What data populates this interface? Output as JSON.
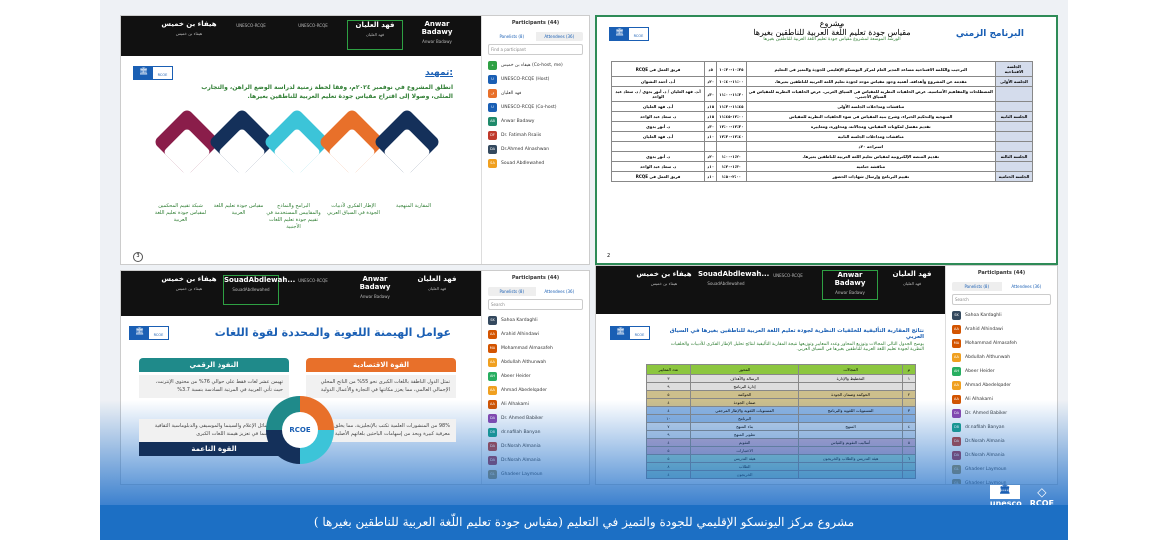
{
  "caption": "مشروع مركز اليونسكو الإقليمي للجودة والتميز في التعليم (مقياس جودة تعليم اللّغة العربية للناطقين بغيرها )",
  "brand": {
    "unesco": "unesco",
    "rcoe": "RCOE"
  },
  "colors": {
    "band": "#1c6fc4",
    "green": "#2e7d32",
    "orange": "#e8702a",
    "teal": "#1f8a8a",
    "navy": "#14305a",
    "maroon": "#8a1d4a",
    "cyan": "#3cc4d8"
  },
  "q1": {
    "tiles": [
      {
        "name": "هيفاء بن خميس",
        "sub": "هيفاء بن خميس"
      },
      {
        "name": "",
        "sub": "UNESCO-RCQE"
      },
      {
        "name": "",
        "sub": "UNESCO-RCQE"
      },
      {
        "name": "فهد العليان",
        "sub": "فهد العليان"
      },
      {
        "name": "Anwar Badawy",
        "sub": "Anwar Badawy"
      }
    ],
    "participants": {
      "title": "Participants (44)",
      "tab1": "Panelists (8)",
      "tab2": "Attendees (36)",
      "search": "Find a participant",
      "items": [
        {
          "i": "ه",
          "n": "هيفاء بن خميس (Co-host, me)",
          "c": "#2ea043"
        },
        {
          "i": "U",
          "n": "UNESCO-RCQE (Host)",
          "c": "#1a5fb4"
        },
        {
          "i": "ف",
          "n": "فهد العليان",
          "c": "#e8702a"
        },
        {
          "i": "U",
          "n": "UNESCO-RCQE (Co-host)",
          "c": "#1a5fb4"
        },
        {
          "i": "AB",
          "n": "Anwar Badawy",
          "c": "#1f8a6a"
        },
        {
          "i": "DF",
          "n": "Dr. Fatimah Rsaiis",
          "c": "#c0392b"
        },
        {
          "i": "DA",
          "n": "Dr.Ahmed Alnashwan",
          "c": "#34495e"
        },
        {
          "i": "SA",
          "n": "Souad Abdlewahed",
          "c": "#f0a020"
        }
      ]
    },
    "slide": {
      "heading": "تمهيد:",
      "text": "انطلق المشروع في نوفمبر ٢٠٢٤م، وفقا لخطة زمنية لدراسة الوضع الراهن، والتجارب المثلى، وصولا إلى اقتراح مقياس جودة تعليم العربية للناطقين بغيرها.",
      "steps": [
        "المقاربة المنهجية",
        "الإطار الفكري لأدبيات الجودة في السياق العربي",
        "البرامج والنماذج والمقاييس المستخدمة في تقييم جودة تعليم اللغات الأجنبية",
        "مقياس جودة تعليم اللغة العربية",
        "شبكة تقييم المحكمين لمقياس جودة تعليم اللغة العربية"
      ],
      "page": "3"
    }
  },
  "q2": {
    "title_top": "مشروع",
    "title": "مقياس جودة تعليم اللّغة العربية للناطقين بغيرها",
    "subtitle": "الورشة الموسعة لمشروع مقياس جودة تعليم اللغة العربية للناطقين بغيرها",
    "program": "البرنامج الزمني",
    "page": "2",
    "rows": [
      [
        "الجلسة الافتتاحية",
        "الترحيب والكلمة الافتتاحية مساعد المدير العام لمركز اليونسكو الإقليمي للجودة والتميز في التعليم",
        "١٠:٣٥-١٠:٣٠",
        "٥د",
        "فريق العمل في RCQE"
      ],
      [
        "الجلسة الأولى",
        "مقدمة عن المشروع وأهدافه. أهمية وجود مقياس موحد لجودة تعليم اللغة العربية للناطقين بغيرها.",
        "١١:٠٠-١٠:٤٠",
        "٢٠د",
        "أ.د. أحمد النشوان"
      ],
      [
        "",
        "المصطلحات والمفاهيم الأساسية. عرض الخلفيات النظرية للمقياس في السياق العربي. عرض الخلفيات النظرية للمقياس في السياق الأجنبي.",
        "١١:٣٠-١١:٠٠",
        "٣٠د",
        "أ.د. فهد العليان / د. أنور بدوي / د. سعاد عبد الواحد"
      ],
      [
        "",
        "مناقشات ومداخلات الجلسة الأولى",
        "١١:٤٥-١١:٣٠",
        "١٥د",
        "أ.د. فهد العليان"
      ],
      [
        "الجلسة الثانية",
        "المنهجية والتحكيم الخبراء، وشرح بنية المقياس في ضوء الخلفيات النظرية للمقياس",
        "١٢:٠٠-١١:٤٥",
        "١٥د",
        "د. سعاد عبد الواحد"
      ],
      [
        "",
        "تقديم مفصل لمكونات المقياس، ومجالاته، ومحاوره، ومعاييره",
        "١٢:٣٠-١٢:٠٠",
        "٣٠د",
        "د. أنور بدوي"
      ],
      [
        "",
        "مناقشات ومداخلات الجلسة الثانية",
        "١٢:٤٠-١٢:٣٠",
        "١٠د",
        "أ.د. فهد العليان"
      ],
      [
        "",
        "استراحة ٢٠د",
        "",
        "",
        ""
      ],
      [
        "الجلسة الثالثة",
        "تقديم المنصة الإلكترونية لمقياس تعليم اللغة العربية للناطقين بغيرها.",
        "١:٢٠-١:٠٠",
        "٢٠د",
        "د. أنور بدوي"
      ],
      [
        "",
        "مناقشة ختامية",
        "١:٣٠-١:٢٠",
        "١٠د",
        "د. سعاد عبد الواحد"
      ],
      [
        "الجلسة الختامية",
        "تقييم البرنامج وإرسال شهادات الحضور",
        "٢:٠٠-١:٥٠",
        "١٠د",
        "فريق العمل في RCQE"
      ]
    ]
  },
  "q3": {
    "tiles": [
      {
        "name": "هيفاء بن خميس",
        "sub": "هيفاء بن خميس"
      },
      {
        "name": "SouadAbdlewah...",
        "sub": "SouadAbdlewahed"
      },
      {
        "name": "",
        "sub": "UNESCO-RCQE"
      },
      {
        "name": "Anwar Badawy",
        "sub": "Anwar Badawy"
      },
      {
        "name": "فهد العليان",
        "sub": "فهد العليان"
      }
    ],
    "slide": {
      "title": "عوامل الهيمنة اللغوية والمحددة لقوة اللغات",
      "center": "RCOE",
      "cards": [
        {
          "title": "القوة الاقتصادية",
          "text": "تمثل الدول الناطقة باللغات الكبرى نحو 55% من الناتج المحلي الإجمالي العالمي، مما يعزز مكانتها في التجارة والأعمال الدولية"
        },
        {
          "title": "النفوذ الرقمي",
          "text": "تهيمن عشر لغات فقط على حوالي 76% من محتوى الإنترنت، حيث تأتي العربية في المرتبة السادسة بنسبة 3.7%"
        },
        {
          "title": "",
          "text": "98% من المنشورات العلمية تكتب بالإنجليزية، مما يخلق فجوة معرفية كبيرة ويحد من إسهامات الباحثين بلغاتهم الأصلية"
        },
        {
          "title": "القوة الناعمة",
          "text": "تلعب وسائل الإعلام والسينما والموسيقى والدبلوماسية الثقافية دورا حاسما في تعزيز هيمنة اللغات الكبرى"
        }
      ],
      "ring": [
        "01",
        "02",
        "03",
        "04"
      ]
    }
  },
  "attendees": {
    "title": "Participants (44)",
    "tab1": "Panelists (8)",
    "tab2": "Attendees (36)",
    "search": "Search",
    "items": [
      {
        "i": "SK",
        "n": "Sahoa Kardaghli",
        "c": "#34495e"
      },
      {
        "i": "AA",
        "n": "Arahid Alhindawi",
        "c": "#d35400"
      },
      {
        "i": "MA",
        "n": "Mohammad Almasafeh",
        "c": "#d35400"
      },
      {
        "i": "AA",
        "n": "Abdullah Althunwah",
        "c": "#f0a020"
      },
      {
        "i": "AH",
        "n": "Abeer Heider",
        "c": "#27ae60"
      },
      {
        "i": "AA",
        "n": "Ahmad Abedelqader",
        "c": "#f0a020"
      },
      {
        "i": "AA",
        "n": "Ali Alhakami",
        "c": "#d35400"
      },
      {
        "i": "DA",
        "n": "Dr. Ahmed Babiker",
        "c": "#8e44ad"
      },
      {
        "i": "DB",
        "n": "dr.nafilah Banyan",
        "c": "#16a085"
      },
      {
        "i": "DA",
        "n": "Dr.Norah Almania",
        "c": "#c0392b"
      },
      {
        "i": "DA",
        "n": "Dr.Norah Almania",
        "c": "#a93246"
      },
      {
        "i": "GL",
        "n": "Ghadeer Laymoun",
        "c": "#a89050"
      },
      {
        "i": "GL",
        "n": "Ghadeer Laymoun",
        "c": "#a89050"
      },
      {
        "i": "HA",
        "n": "Hamoud Al-Aughaishi",
        "c": "#3f51b5"
      }
    ]
  },
  "q4": {
    "tiles": [
      {
        "name": "هيفاء بن خميس",
        "sub": "هيفاء بن خميس"
      },
      {
        "name": "SouadAbdlewah...",
        "sub": "SouadAbdlewahed"
      },
      {
        "name": "",
        "sub": "UNESCO-RCQE"
      },
      {
        "name": "Anwar Badawy",
        "sub": "Anwar Badawy"
      },
      {
        "name": "فهد العليان",
        "sub": "فهد العليان"
      }
    ],
    "slide": {
      "title": "نتائج المقاربة التأليفية للخلفيات النظرية لجودة تعليم اللغة العربية للناطقين بغيرها في السياق العربي",
      "text": "يوضح الجدول التالي المجالات وتوزيع المحاور وعدد المعايير وتوزيعها نتيجة المقاربة التأليفية لنتائج تحليل الإطار الفكري للأدبيات والخلفيات النظرية لجودة تعليم اللغة العربية للناطقين بغيرها في السياق العربي.",
      "headers": [
        "م",
        "المجالات",
        "المحور",
        "عدد المعايير"
      ],
      "rows": [
        [
          "١",
          "التخطيط والإدارة",
          "الرسالة والأهداف",
          "٣",
          "#ddd"
        ],
        [
          "",
          "",
          "إدارة البرنامج",
          "٩",
          "#ddd"
        ],
        [
          "٢",
          "الحوكمة وضمان الجودة",
          "الحوكمة",
          "٥",
          "#cdbf8c"
        ],
        [
          "",
          "",
          "ضمان الجودة",
          "٤",
          "#cdbf8c"
        ],
        [
          "٣",
          "المستويات اللغوية والبرنامج",
          "المستويات اللغوية والإطار المرجعي",
          "٤",
          "#8fb4e0"
        ],
        [
          "",
          "",
          "البرنامج",
          "١٠",
          "#8fb4e0"
        ],
        [
          "٤",
          "المنهج",
          "بناء المنهج",
          "٧",
          "#c6d6ea"
        ],
        [
          "",
          "",
          "تطوير المنهج",
          "٩",
          "#c6d6ea"
        ],
        [
          "٥",
          "أساليب التقويم والقياس",
          "التقويم",
          "٤",
          "#c7a9c9"
        ],
        [
          "",
          "",
          "الاختبارات",
          "٥",
          "#c7a9c9"
        ],
        [
          "٦",
          "هيئة التدريس والطلاب والخريجون",
          "هيئة التدريس",
          "٥",
          "#9fd4c8"
        ],
        [
          "",
          "",
          "الطلاب",
          "٨",
          "#9fd4c8"
        ],
        [
          "",
          "",
          "الخريجون",
          "٤",
          "#9fd4c8"
        ]
      ]
    }
  }
}
